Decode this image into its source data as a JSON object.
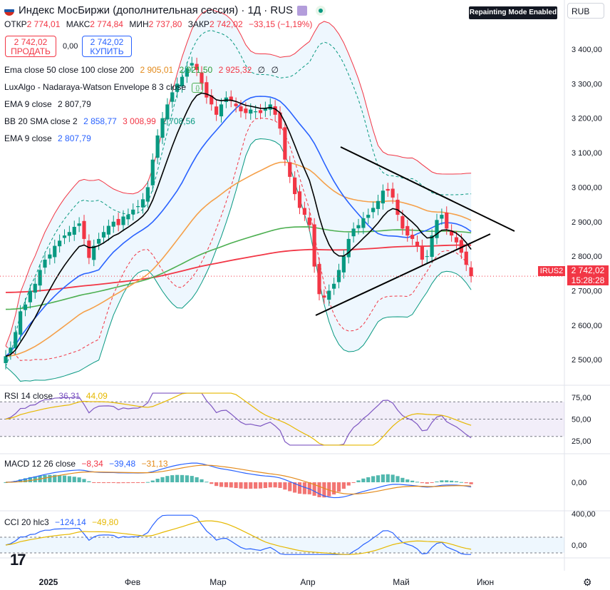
{
  "header": {
    "title": "Индекс МосБиржи (дополнительная сессия) · 1Д · RUS",
    "repaint_badge": "Repainting Mode Enabled",
    "currency": "RUB",
    "flag_colors": [
      "#ffffff",
      "#1c57a5",
      "#d52b1e"
    ]
  },
  "ohlc": {
    "open_label": "ОТКР",
    "open": "2 774,01",
    "high_label": "МАКС",
    "high": "2 774,84",
    "low_label": "МИН",
    "low": "2 737,80",
    "close_label": "ЗАКР",
    "close": "2 742,02",
    "change": "−33,15 (−1,19%)"
  },
  "trade": {
    "sell_price": "2 742,02",
    "sell_label": "ПРОДАТЬ",
    "spread": "0,00",
    "buy_price": "2 742,02",
    "buy_label": "КУПИТЬ"
  },
  "indicators": [
    {
      "label": "Ema close 50 close 100 close 200",
      "values": [
        {
          "v": "2 905,01",
          "color": "#e38a1b"
        },
        {
          "v": "2 921,50",
          "color": "#2e9d3a"
        },
        {
          "v": "2 925,32",
          "color": "#f23645"
        },
        {
          "v": "∅",
          "color": "#131722"
        },
        {
          "v": "∅",
          "color": "#131722"
        }
      ]
    },
    {
      "label": "LuxAlgo - Nadaraya-Watson Envelope 8 3 close",
      "values": []
    },
    {
      "label": "EMA 9 close",
      "values": [
        {
          "v": "2 807,79",
          "color": "#131722"
        }
      ]
    },
    {
      "label": "BB 20 SMA close 2",
      "values": [
        {
          "v": "2 858,77",
          "color": "#2962ff"
        },
        {
          "v": "3 008,99",
          "color": "#f23645"
        },
        {
          "v": "2 708,56",
          "color": "#089981"
        }
      ]
    },
    {
      "label": "EMA 9 close",
      "values": [
        {
          "v": "2 807,79",
          "color": "#2962ff"
        }
      ]
    }
  ],
  "price_tag": {
    "symbol": "IRUS2",
    "price": "2 742,02",
    "countdown": "15:28:28"
  },
  "colors": {
    "up": "#089981",
    "down": "#f23645",
    "ema9": "#000000",
    "bb_basis": "#2962ff",
    "bb_upper": "#f23645",
    "bb_lower": "#089981",
    "ema50": "#f5a04a",
    "ema100": "#4caf50",
    "ema200": "#f23645"
  },
  "chart_data": {
    "type": "candlestick",
    "price_axis_ticks": [
      "3 400,00",
      "3 300,00",
      "3 200,00",
      "3 100,00",
      "3 000,00",
      "2 900,00",
      "2 800,00",
      "2 700,00",
      "2 600,00",
      "2 500,00"
    ],
    "price_range": [
      2430,
      3460
    ],
    "time_axis_ticks": [
      "2025",
      "Фев",
      "Мар",
      "Апр",
      "Май",
      "Июн"
    ],
    "close_series": [
      2510,
      2535,
      2580,
      2640,
      2660,
      2700,
      2720,
      2760,
      2790,
      2805,
      2830,
      2845,
      2860,
      2870,
      2885,
      2895,
      2850,
      2795,
      2830,
      2850,
      2870,
      2888,
      2900,
      2890,
      2915,
      2920,
      2935,
      2945,
      2965,
      3000,
      3080,
      3150,
      3200,
      3240,
      3275,
      3300,
      3320,
      3345,
      3360,
      3340,
      3300,
      3260,
      3240,
      3210,
      3240,
      3260,
      3250,
      3235,
      3220,
      3215,
      3225,
      3220,
      3215,
      3230,
      3240,
      3210,
      3170,
      3080,
      3030,
      2980,
      2940,
      2920,
      2890,
      2770,
      2690,
      2680,
      2700,
      2720,
      2760,
      2800,
      2850,
      2880,
      2890,
      2910,
      2920,
      2940,
      2960,
      2990,
      2990,
      2970,
      2920,
      2880,
      2860,
      2850,
      2830,
      2790,
      2800,
      2860,
      2905,
      2920,
      2880,
      2860,
      2840,
      2810,
      2775,
      2742
    ],
    "rsi": {
      "label": "RSI 14 close",
      "value": "36,31",
      "ma_value": "44,09",
      "ticks": [
        "75,00",
        "50,00",
        "25,00"
      ]
    },
    "macd": {
      "label": "MACD 12 26 close",
      "hist": "−8,34",
      "macd": "−39,48",
      "signal": "−31,13",
      "ticks": [
        "0,00"
      ]
    },
    "cci": {
      "label": "CCI 20 hlc3",
      "value": "−124,14",
      "ma_value": "−49,80",
      "ticks": [
        "400,00",
        "0,00"
      ]
    }
  }
}
